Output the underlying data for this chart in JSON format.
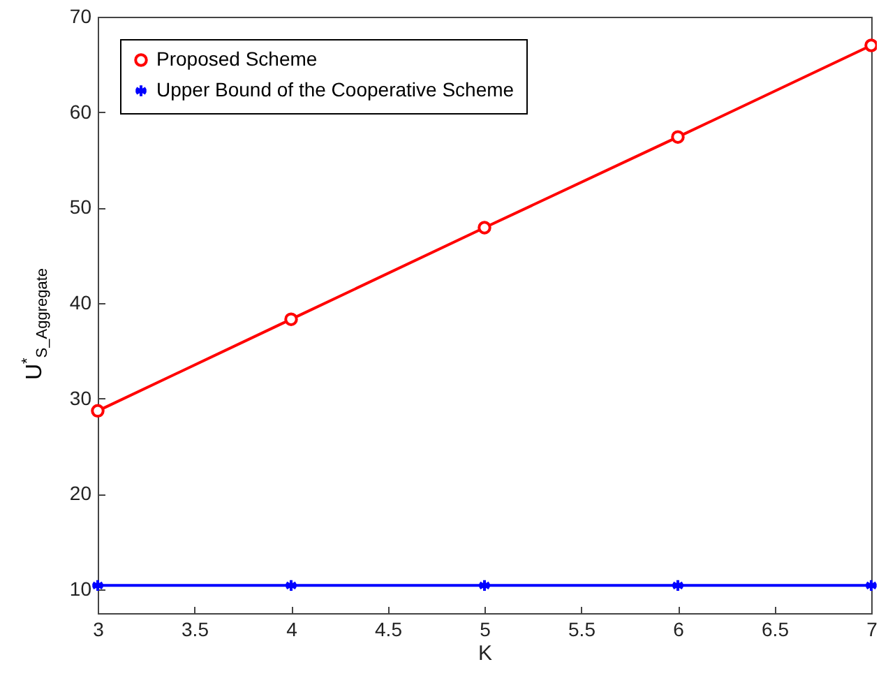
{
  "chart_data": {
    "type": "line",
    "xlabel": "K",
    "ylabel": "U$^{*}$$_{S_Aggregate}$",
    "x": [
      3,
      4,
      5,
      6,
      7
    ],
    "series": [
      {
        "name": "Proposed Scheme",
        "color": "#ff0000",
        "marker": "circle",
        "values": [
          28.7,
          38.3,
          47.9,
          57.4,
          67.0
        ]
      },
      {
        "name": "Upper Bound of the Cooperative Scheme",
        "color": "#0000ff",
        "marker": "cross",
        "values": [
          10.4,
          10.4,
          10.4,
          10.4,
          10.4
        ]
      }
    ],
    "xlim": [
      3,
      7
    ],
    "xticks": [
      3,
      3.5,
      4,
      4.5,
      5,
      5.5,
      6,
      6.5,
      7
    ],
    "ylim": [
      7.5,
      70
    ],
    "yticks": [
      10,
      20,
      30,
      40,
      50,
      60,
      70
    ],
    "grid": false,
    "legend": "top left",
    "line_style": "solid"
  }
}
